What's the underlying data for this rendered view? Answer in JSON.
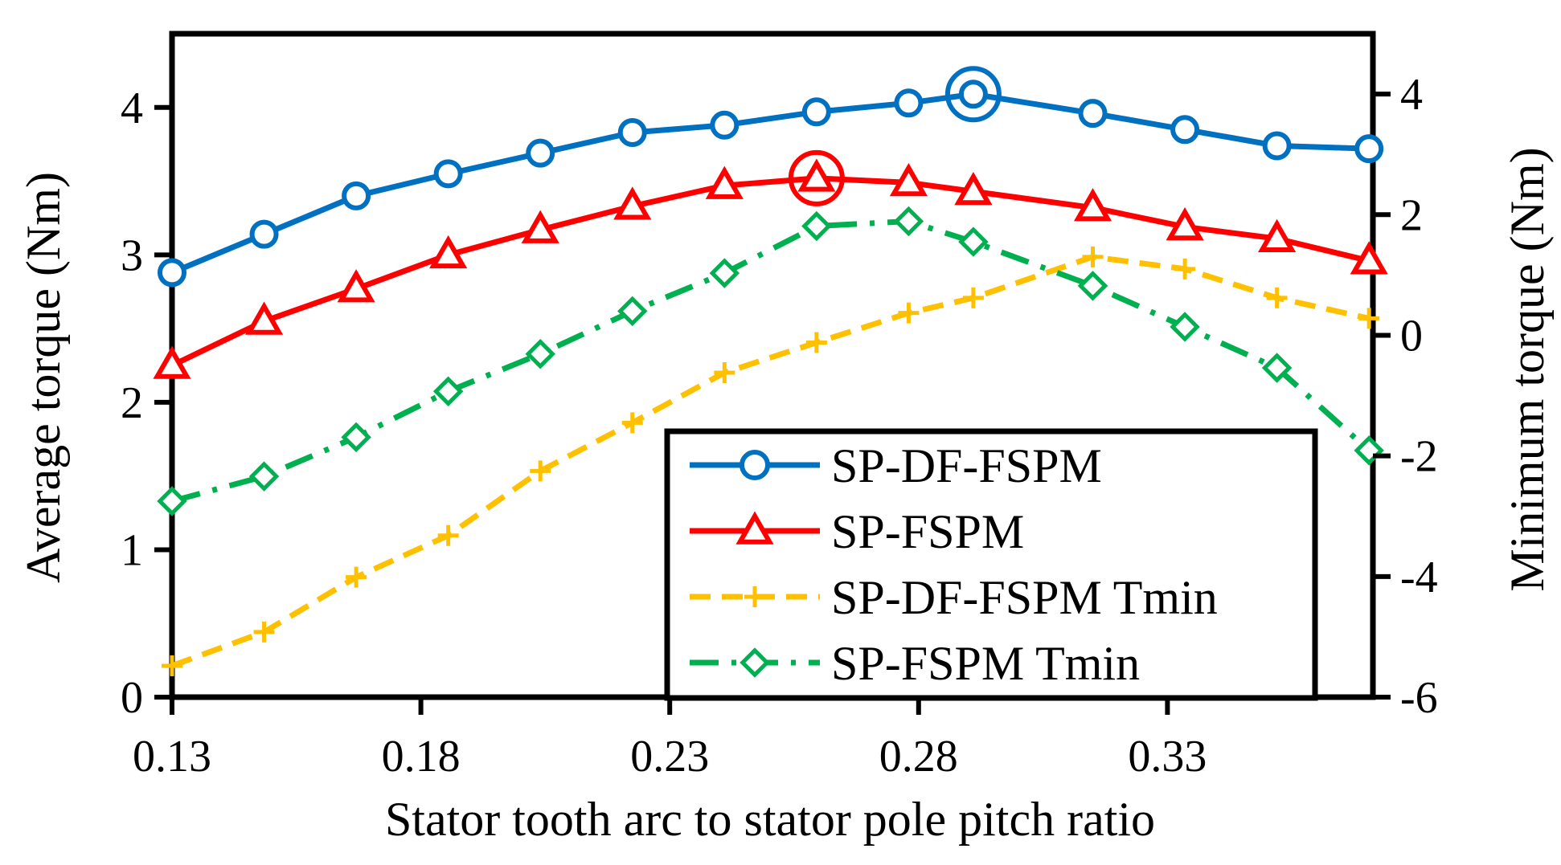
{
  "chart_data": {
    "type": "line",
    "xlabel": "Stator tooth arc to stator pole pitch ratio",
    "ylabel_left": "Average torque (Nm)",
    "ylabel_right": "Minimum torque (Nm)",
    "xlim": [
      0.13,
      0.372
    ],
    "ylim_left": [
      0,
      4.5
    ],
    "ylim_right": [
      -6,
      5
    ],
    "xticks": [
      "0.13",
      "0.18",
      "0.23",
      "0.28",
      "0.33"
    ],
    "yticks_left": [
      "0",
      "1",
      "2",
      "3",
      "4"
    ],
    "yticks_right": [
      "-6",
      "-4",
      "-2",
      "0",
      "2",
      "4"
    ],
    "legend_position": "bottom-right",
    "grid": false,
    "colors": {
      "blue": "#0070c0",
      "red": "#ff0000",
      "yellow": "#ffc000",
      "green": "#00b050"
    },
    "series": [
      {
        "name": "SP-DF-FSPM",
        "axis": "left",
        "color": "#0070c0",
        "marker": "circle",
        "line": "solid",
        "x": [
          0.13,
          0.1485,
          0.167,
          0.1855,
          0.204,
          0.2225,
          0.241,
          0.2595,
          0.278,
          0.291,
          0.315,
          0.3335,
          0.352,
          0.3705
        ],
        "y": [
          2.88,
          3.14,
          3.4,
          3.55,
          3.69,
          3.83,
          3.88,
          3.97,
          4.03,
          4.09,
          3.96,
          3.85,
          3.74,
          3.72
        ],
        "highlight_index": 9
      },
      {
        "name": "SP-FSPM",
        "axis": "left",
        "color": "#ff0000",
        "marker": "triangle",
        "line": "solid",
        "x": [
          0.13,
          0.1485,
          0.167,
          0.1855,
          0.204,
          0.2225,
          0.241,
          0.2595,
          0.278,
          0.291,
          0.315,
          0.3335,
          0.352,
          0.3705
        ],
        "y": [
          2.25,
          2.55,
          2.77,
          3.0,
          3.17,
          3.33,
          3.47,
          3.52,
          3.49,
          3.43,
          3.32,
          3.19,
          3.11,
          2.96
        ],
        "highlight_index": 7
      },
      {
        "name": "SP-DF-FSPM Tmin",
        "axis": "right",
        "color": "#ffc000",
        "marker": "plus",
        "line": "dashed",
        "x": [
          0.13,
          0.1485,
          0.167,
          0.1855,
          0.204,
          0.2225,
          0.241,
          0.2595,
          0.278,
          0.291,
          0.315,
          0.3335,
          0.352,
          0.3705
        ],
        "y": [
          -5.48,
          -4.92,
          -4.01,
          -3.32,
          -2.25,
          -1.45,
          -0.62,
          -0.12,
          0.37,
          0.62,
          1.3,
          1.1,
          0.62,
          0.28
        ]
      },
      {
        "name": "SP-FSPM Tmin",
        "axis": "right",
        "color": "#00b050",
        "marker": "diamond",
        "line": "dashdot",
        "x": [
          0.13,
          0.1485,
          0.167,
          0.1855,
          0.204,
          0.2225,
          0.241,
          0.2595,
          0.278,
          0.291,
          0.315,
          0.3335,
          0.352,
          0.3705
        ],
        "y": [
          -2.75,
          -2.34,
          -1.69,
          -0.93,
          -0.31,
          0.4,
          1.03,
          1.81,
          1.89,
          1.55,
          0.82,
          0.14,
          -0.54,
          -1.91
        ]
      }
    ]
  }
}
